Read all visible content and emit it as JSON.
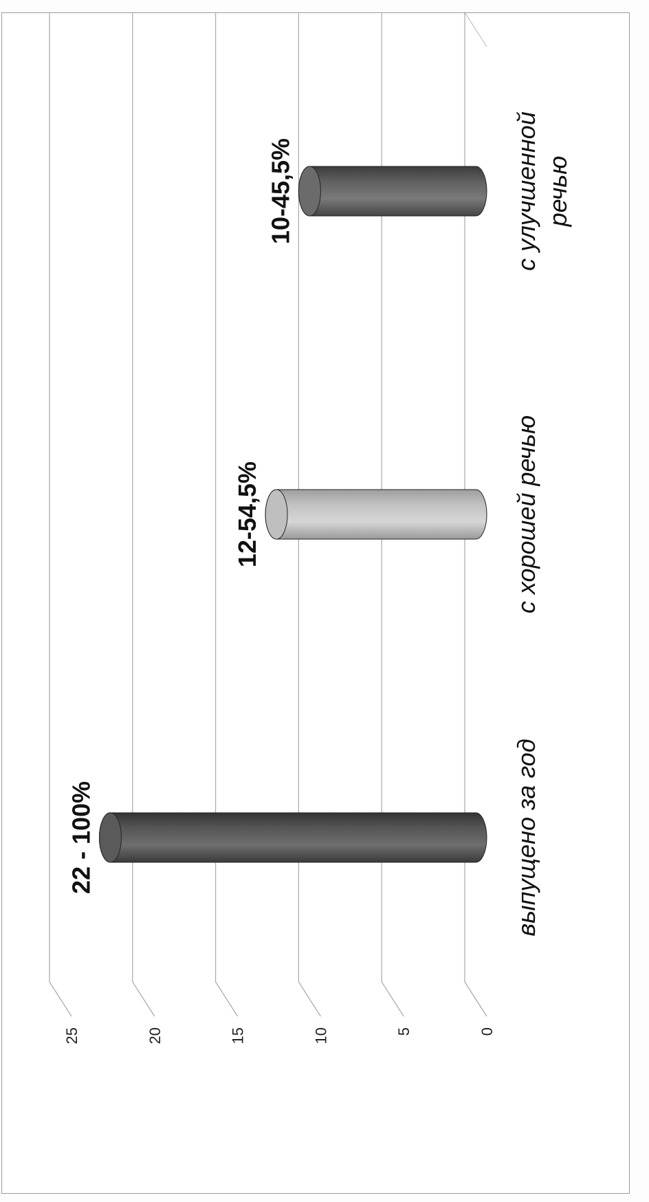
{
  "chart_data": {
    "type": "bar",
    "categories": [
      "выпущено за год",
      "с хорошей речью",
      "с улучшенной речью"
    ],
    "category_label_lines": [
      [
        "выпущено за год"
      ],
      [
        "с хорошей речью"
      ],
      [
        "с улучшенной",
        "речью"
      ]
    ],
    "values": [
      22,
      12,
      10
    ],
    "data_labels": [
      "22 - 100%",
      "12-54,5%",
      "10-45,5%"
    ],
    "colors": [
      "#5a5a5a",
      "#bfbfbf",
      "#6b6b6b"
    ],
    "ylim": [
      0,
      25
    ],
    "yticks": [
      0,
      5,
      10,
      15,
      20,
      25
    ],
    "title": "",
    "xlabel": "",
    "ylabel": "",
    "grid": true,
    "style": "3d-cylinder",
    "orientation": "rotated-90"
  }
}
